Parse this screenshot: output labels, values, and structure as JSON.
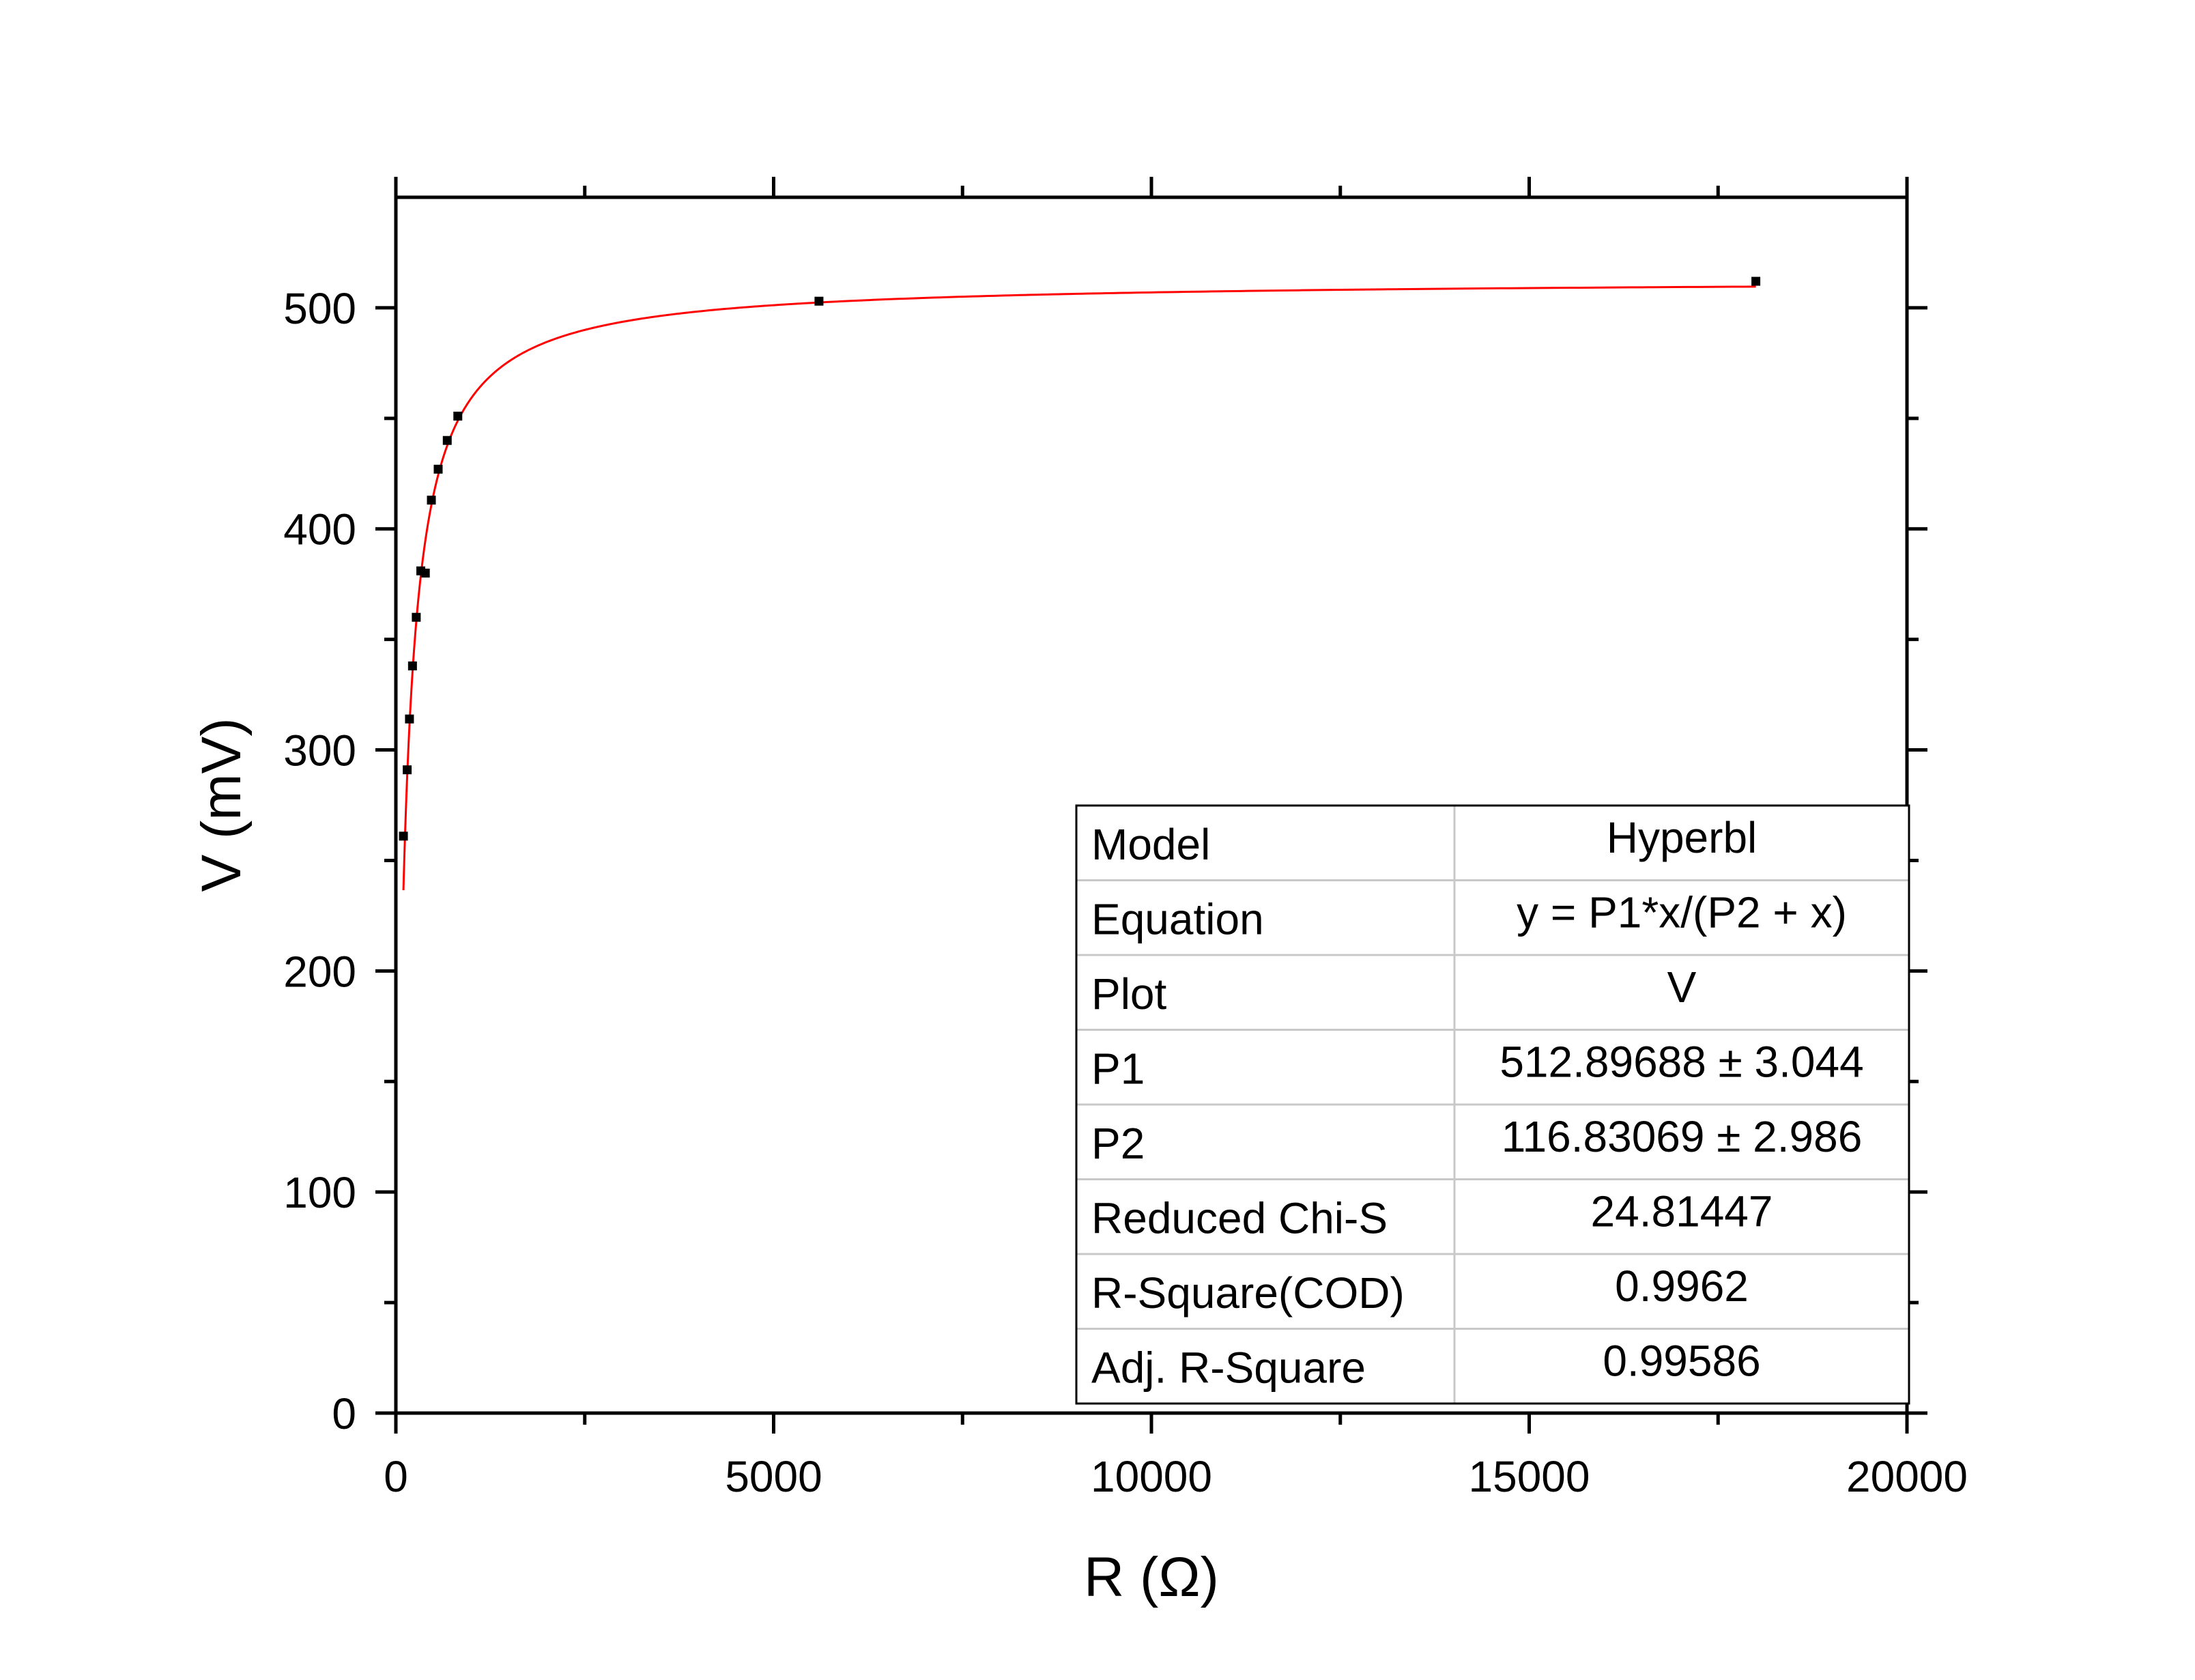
{
  "chart_data": {
    "type": "scatter",
    "xlabel": "R (Ω)",
    "ylabel": "V (mV)",
    "xlim": [
      0,
      20000
    ],
    "ylim": [
      0,
      550
    ],
    "xticks": [
      0,
      5000,
      10000,
      15000,
      20000
    ],
    "yticks": [
      0,
      100,
      200,
      300,
      400,
      500
    ],
    "xtick_labels": [
      "0",
      "5000",
      "10000",
      "15000",
      "20000"
    ],
    "ytick_labels": [
      "0",
      "100",
      "200",
      "300",
      "400",
      "500"
    ],
    "grid": false,
    "marker_color": "#000000",
    "fit_color": "#ff0000",
    "series": [
      {
        "values": [
          {
            "x": 100,
            "y": 261
          },
          {
            "x": 150,
            "y": 291
          },
          {
            "x": 180,
            "y": 314
          },
          {
            "x": 220,
            "y": 338
          },
          {
            "x": 270,
            "y": 360
          },
          {
            "x": 330,
            "y": 381
          },
          {
            "x": 390,
            "y": 380
          },
          {
            "x": 470,
            "y": 413
          },
          {
            "x": 560,
            "y": 427
          },
          {
            "x": 680,
            "y": 440
          },
          {
            "x": 820,
            "y": 451
          },
          {
            "x": 5600,
            "y": 503
          },
          {
            "x": 18000,
            "y": 512
          }
        ]
      }
    ],
    "fit": {
      "P1": 512.89688,
      "P2": 116.83069,
      "x_start": 100,
      "x_end": 18000
    },
    "results_table": {
      "placement": "bottom-right",
      "rows": [
        {
          "label": "Model",
          "value": "Hyperbl"
        },
        {
          "label": "Equation",
          "value": "y = P1*x/(P2 + x)"
        },
        {
          "label": "Plot",
          "value": "V"
        },
        {
          "label": "P1",
          "value": "512.89688 ± 3.044"
        },
        {
          "label": "P2",
          "value": "116.83069 ± 2.986"
        },
        {
          "label": "Reduced Chi-S",
          "value": "24.81447"
        },
        {
          "label": "R-Square(COD)",
          "value": "0.9962"
        },
        {
          "label": "Adj. R-Square",
          "value": "0.99586"
        }
      ]
    }
  }
}
